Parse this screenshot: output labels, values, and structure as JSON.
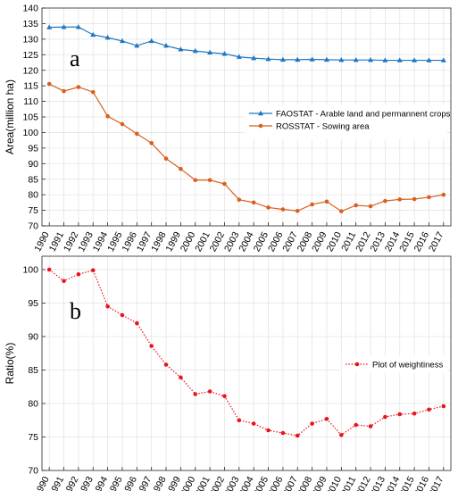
{
  "chart_data": [
    {
      "type": "line",
      "panel_label": "a",
      "ylabel": "Area(million ha)",
      "ylim": [
        70,
        140
      ],
      "yticks": [
        70,
        75,
        80,
        85,
        90,
        95,
        100,
        105,
        110,
        115,
        120,
        125,
        130,
        135,
        140
      ],
      "grid": true,
      "legend_position": "center-right",
      "x": [
        "1990",
        "1991",
        "1992",
        "1993",
        "1994",
        "1995",
        "1996",
        "1997",
        "1998",
        "1999",
        "2000",
        "2001",
        "2002",
        "2003",
        "2004",
        "2005",
        "2006",
        "2007",
        "2008",
        "2009",
        "2010",
        "2011",
        "2012",
        "2013",
        "2014",
        "2015",
        "2016",
        "2017"
      ],
      "series": [
        {
          "name": "FAOSTAT - Arable land and permannent crops",
          "color": "#1f77c4",
          "marker": "triangle",
          "line": "solid",
          "values": [
            133.8,
            133.9,
            133.9,
            131.4,
            130.5,
            129.4,
            127.9,
            129.4,
            127.9,
            126.7,
            126.2,
            125.7,
            125.3,
            124.3,
            123.9,
            123.6,
            123.4,
            123.4,
            123.5,
            123.4,
            123.3,
            123.3,
            123.3,
            123.2,
            123.2,
            123.2,
            123.2,
            123.2
          ]
        },
        {
          "name": "ROSSTAT - Sowing area",
          "color": "#d95f1e",
          "marker": "circle",
          "line": "solid",
          "values": [
            115.6,
            113.3,
            114.6,
            113.0,
            105.2,
            102.7,
            99.6,
            96.6,
            91.6,
            88.3,
            84.7,
            84.7,
            83.5,
            78.4,
            77.5,
            75.9,
            75.3,
            74.8,
            76.9,
            77.8,
            74.7,
            76.6,
            76.3,
            78.0,
            78.5,
            78.6,
            79.2,
            80.0
          ]
        }
      ]
    },
    {
      "type": "line",
      "panel_label": "b",
      "ylabel": "Ratio(%)",
      "ylim": [
        70,
        102
      ],
      "yticks": [
        70,
        75,
        80,
        85,
        90,
        95,
        100
      ],
      "grid": true,
      "legend_position": "center-right",
      "x": [
        "1990",
        "1991",
        "1992",
        "1993",
        "1994",
        "1995",
        "1996",
        "1997",
        "1998",
        "1999",
        "2000",
        "2001",
        "2002",
        "2003",
        "2004",
        "2005",
        "2006",
        "2007",
        "2008",
        "2009",
        "2010",
        "2011",
        "2012",
        "2013",
        "2014",
        "2015",
        "2016",
        "2017"
      ],
      "series": [
        {
          "name": "Plot of weightiness",
          "color": "#e8141e",
          "marker": "circle",
          "line": "dotted",
          "values": [
            100.0,
            98.3,
            99.3,
            99.9,
            94.5,
            93.2,
            92.0,
            88.6,
            85.8,
            83.9,
            81.4,
            81.8,
            81.1,
            77.5,
            77.0,
            76.0,
            75.6,
            75.2,
            77.0,
            77.7,
            75.3,
            76.8,
            76.6,
            78.0,
            78.4,
            78.5,
            79.1,
            79.6
          ]
        }
      ]
    }
  ]
}
